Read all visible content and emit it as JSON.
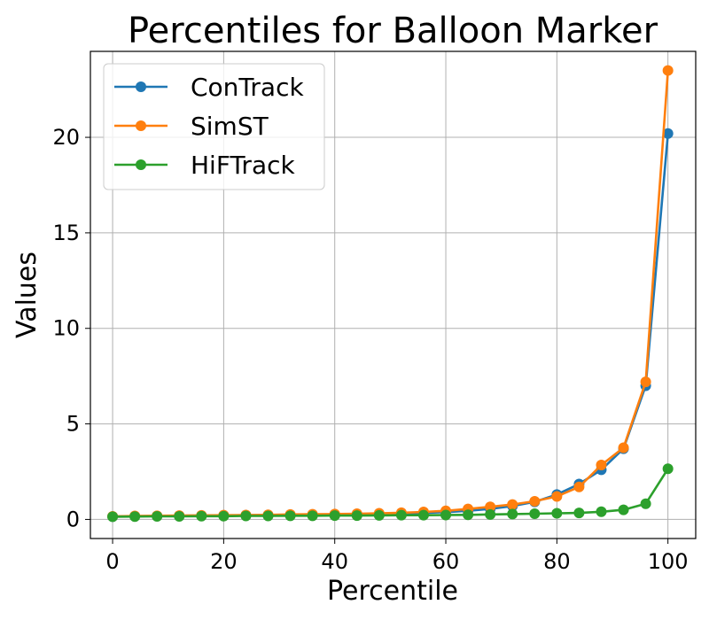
{
  "chart_data": {
    "type": "line",
    "title": "Percentiles for Balloon Marker",
    "xlabel": "Percentile",
    "ylabel": "Values",
    "xlim": [
      -4,
      105
    ],
    "ylim": [
      -1,
      24.5
    ],
    "xticks": [
      0,
      20,
      40,
      60,
      80,
      100
    ],
    "yticks": [
      0,
      5,
      10,
      15,
      20
    ],
    "grid": true,
    "legend_position": "top-left",
    "x": [
      0,
      4,
      8,
      12,
      16,
      20,
      24,
      28,
      32,
      36,
      40,
      44,
      48,
      52,
      56,
      60,
      64,
      68,
      72,
      76,
      80,
      84,
      88,
      92,
      96,
      100
    ],
    "series": [
      {
        "name": "ConTrack",
        "color": "#1f77b4",
        "values": [
          0.15,
          0.17,
          0.18,
          0.19,
          0.2,
          0.21,
          0.22,
          0.23,
          0.24,
          0.25,
          0.26,
          0.27,
          0.29,
          0.31,
          0.34,
          0.38,
          0.45,
          0.55,
          0.7,
          0.92,
          1.3,
          1.85,
          2.6,
          3.7,
          7.0,
          20.2
        ]
      },
      {
        "name": "SimST",
        "color": "#ff7f0e",
        "values": [
          0.16,
          0.18,
          0.19,
          0.2,
          0.21,
          0.22,
          0.23,
          0.24,
          0.26,
          0.27,
          0.28,
          0.3,
          0.32,
          0.35,
          0.39,
          0.45,
          0.55,
          0.66,
          0.78,
          0.95,
          1.2,
          1.7,
          2.85,
          3.75,
          7.2,
          23.5
        ]
      },
      {
        "name": "HiFTrack",
        "color": "#2ca02c",
        "values": [
          0.14,
          0.15,
          0.16,
          0.16,
          0.17,
          0.17,
          0.18,
          0.18,
          0.19,
          0.19,
          0.2,
          0.2,
          0.21,
          0.22,
          0.22,
          0.23,
          0.24,
          0.26,
          0.28,
          0.3,
          0.32,
          0.34,
          0.4,
          0.5,
          0.82,
          2.65
        ]
      }
    ]
  }
}
